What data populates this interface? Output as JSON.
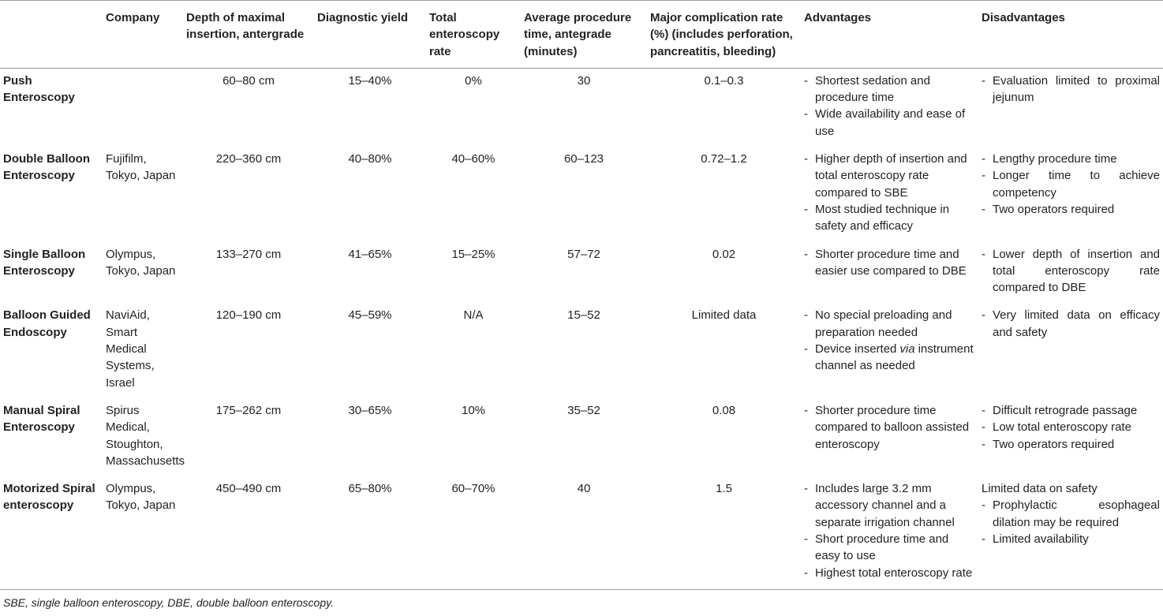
{
  "table": {
    "headers": [
      "Company",
      "Depth of maximal insertion, antergrade",
      "Diagnostic yield",
      "Total enteroscopy rate",
      "Average procedure time, antegrade (minutes)",
      "Major complication rate (%) (includes perforation, pancreatitis, bleeding)",
      "Advantages",
      "Disadvantages"
    ],
    "rows": [
      {
        "name": "Push Enteroscopy",
        "depth": "60–80 cm",
        "yield": "15–40%",
        "total": "0%",
        "time": "30",
        "complication": "0.1–0.3",
        "advantages": [
          {
            "text": "Shortest sedation and procedure time"
          },
          {
            "text": "Wide availability and ease of use"
          }
        ],
        "disadvantages": [
          {
            "text": "Evaluation limited to proximal jejunum"
          }
        ]
      },
      {
        "name": "Double Balloon Enteroscopy",
        "company": "Fujifilm, Tokyo, Japan",
        "depth": "220–360 cm",
        "yield": "40–80%",
        "total": "40–60%",
        "time": "60–123",
        "complication": "0.72–1.2",
        "advantages": [
          {
            "text": "Higher depth of insertion and total enteroscopy rate compared to SBE"
          },
          {
            "text": "Most studied technique in safety and efficacy"
          }
        ],
        "disadvantages": [
          {
            "text": "Lengthy procedure time"
          },
          {
            "text": "Longer time to achieve competency"
          },
          {
            "text": "Two operators required"
          }
        ]
      },
      {
        "name": "Single Balloon Enteroscopy",
        "company": "Olympus, Tokyo, Japan",
        "depth": "133–270 cm",
        "yield": "41–65%",
        "total": "15–25%",
        "time": "57–72",
        "complication": "0.02",
        "advantages": [
          {
            "text": "Shorter procedure time and easier use compared to DBE"
          }
        ],
        "disadvantages": [
          {
            "text": "Lower depth of insertion and total enteroscopy rate compared to DBE"
          }
        ]
      },
      {
        "name": "Balloon Guided Endoscopy",
        "company": "NaviAid, Smart Medical Systems, Israel",
        "depth": "120–190 cm",
        "yield": "45–59%",
        "total": "N/A",
        "time": "15–52",
        "complication": "Limited data",
        "advantages": [
          {
            "text": "No special preloading and preparation needed"
          },
          {
            "text": "Device inserted",
            "italic": "via",
            "after": "instrument channel as needed"
          }
        ],
        "disadvantages": [
          {
            "text": "Very limited data on efficacy and safety"
          }
        ]
      },
      {
        "name": "Manual Spiral Enteroscopy",
        "company": "Spirus Medical, Stoughton, Massachusetts",
        "depth": "175–262 cm",
        "yield": "30–65%",
        "total": "10%",
        "time": "35–52",
        "complication": "0.08",
        "advantages": [
          {
            "text": "Shorter procedure time compared to balloon assisted enteroscopy"
          }
        ],
        "disadvantages": [
          {
            "text": "Difficult retrograde passage"
          },
          {
            "text": "Low total enteroscopy rate"
          },
          {
            "text": "Two operators required"
          }
        ]
      },
      {
        "name": "Motorized Spiral enteroscopy",
        "company": "Olympus, Tokyo, Japan",
        "depth": "450–490 cm",
        "yield": "65–80%",
        "total": "60–70%",
        "time": "40",
        "complication": "1.5",
        "advantages": [
          {
            "text": "Includes large 3.2 mm accessory channel and a separate irrigation channel"
          },
          {
            "text": "Short procedure time and easy to use"
          },
          {
            "text": "Highest total enteroscopy rate"
          }
        ],
        "disadvantages_lead": "Limited data on safety",
        "disadvantages": [
          {
            "text": "Prophylactic esophageal dilation may be required"
          },
          {
            "text": "Limited availability"
          }
        ]
      }
    ]
  },
  "footnote": "SBE, single balloon enteroscopy, DBE, double balloon enteroscopy."
}
